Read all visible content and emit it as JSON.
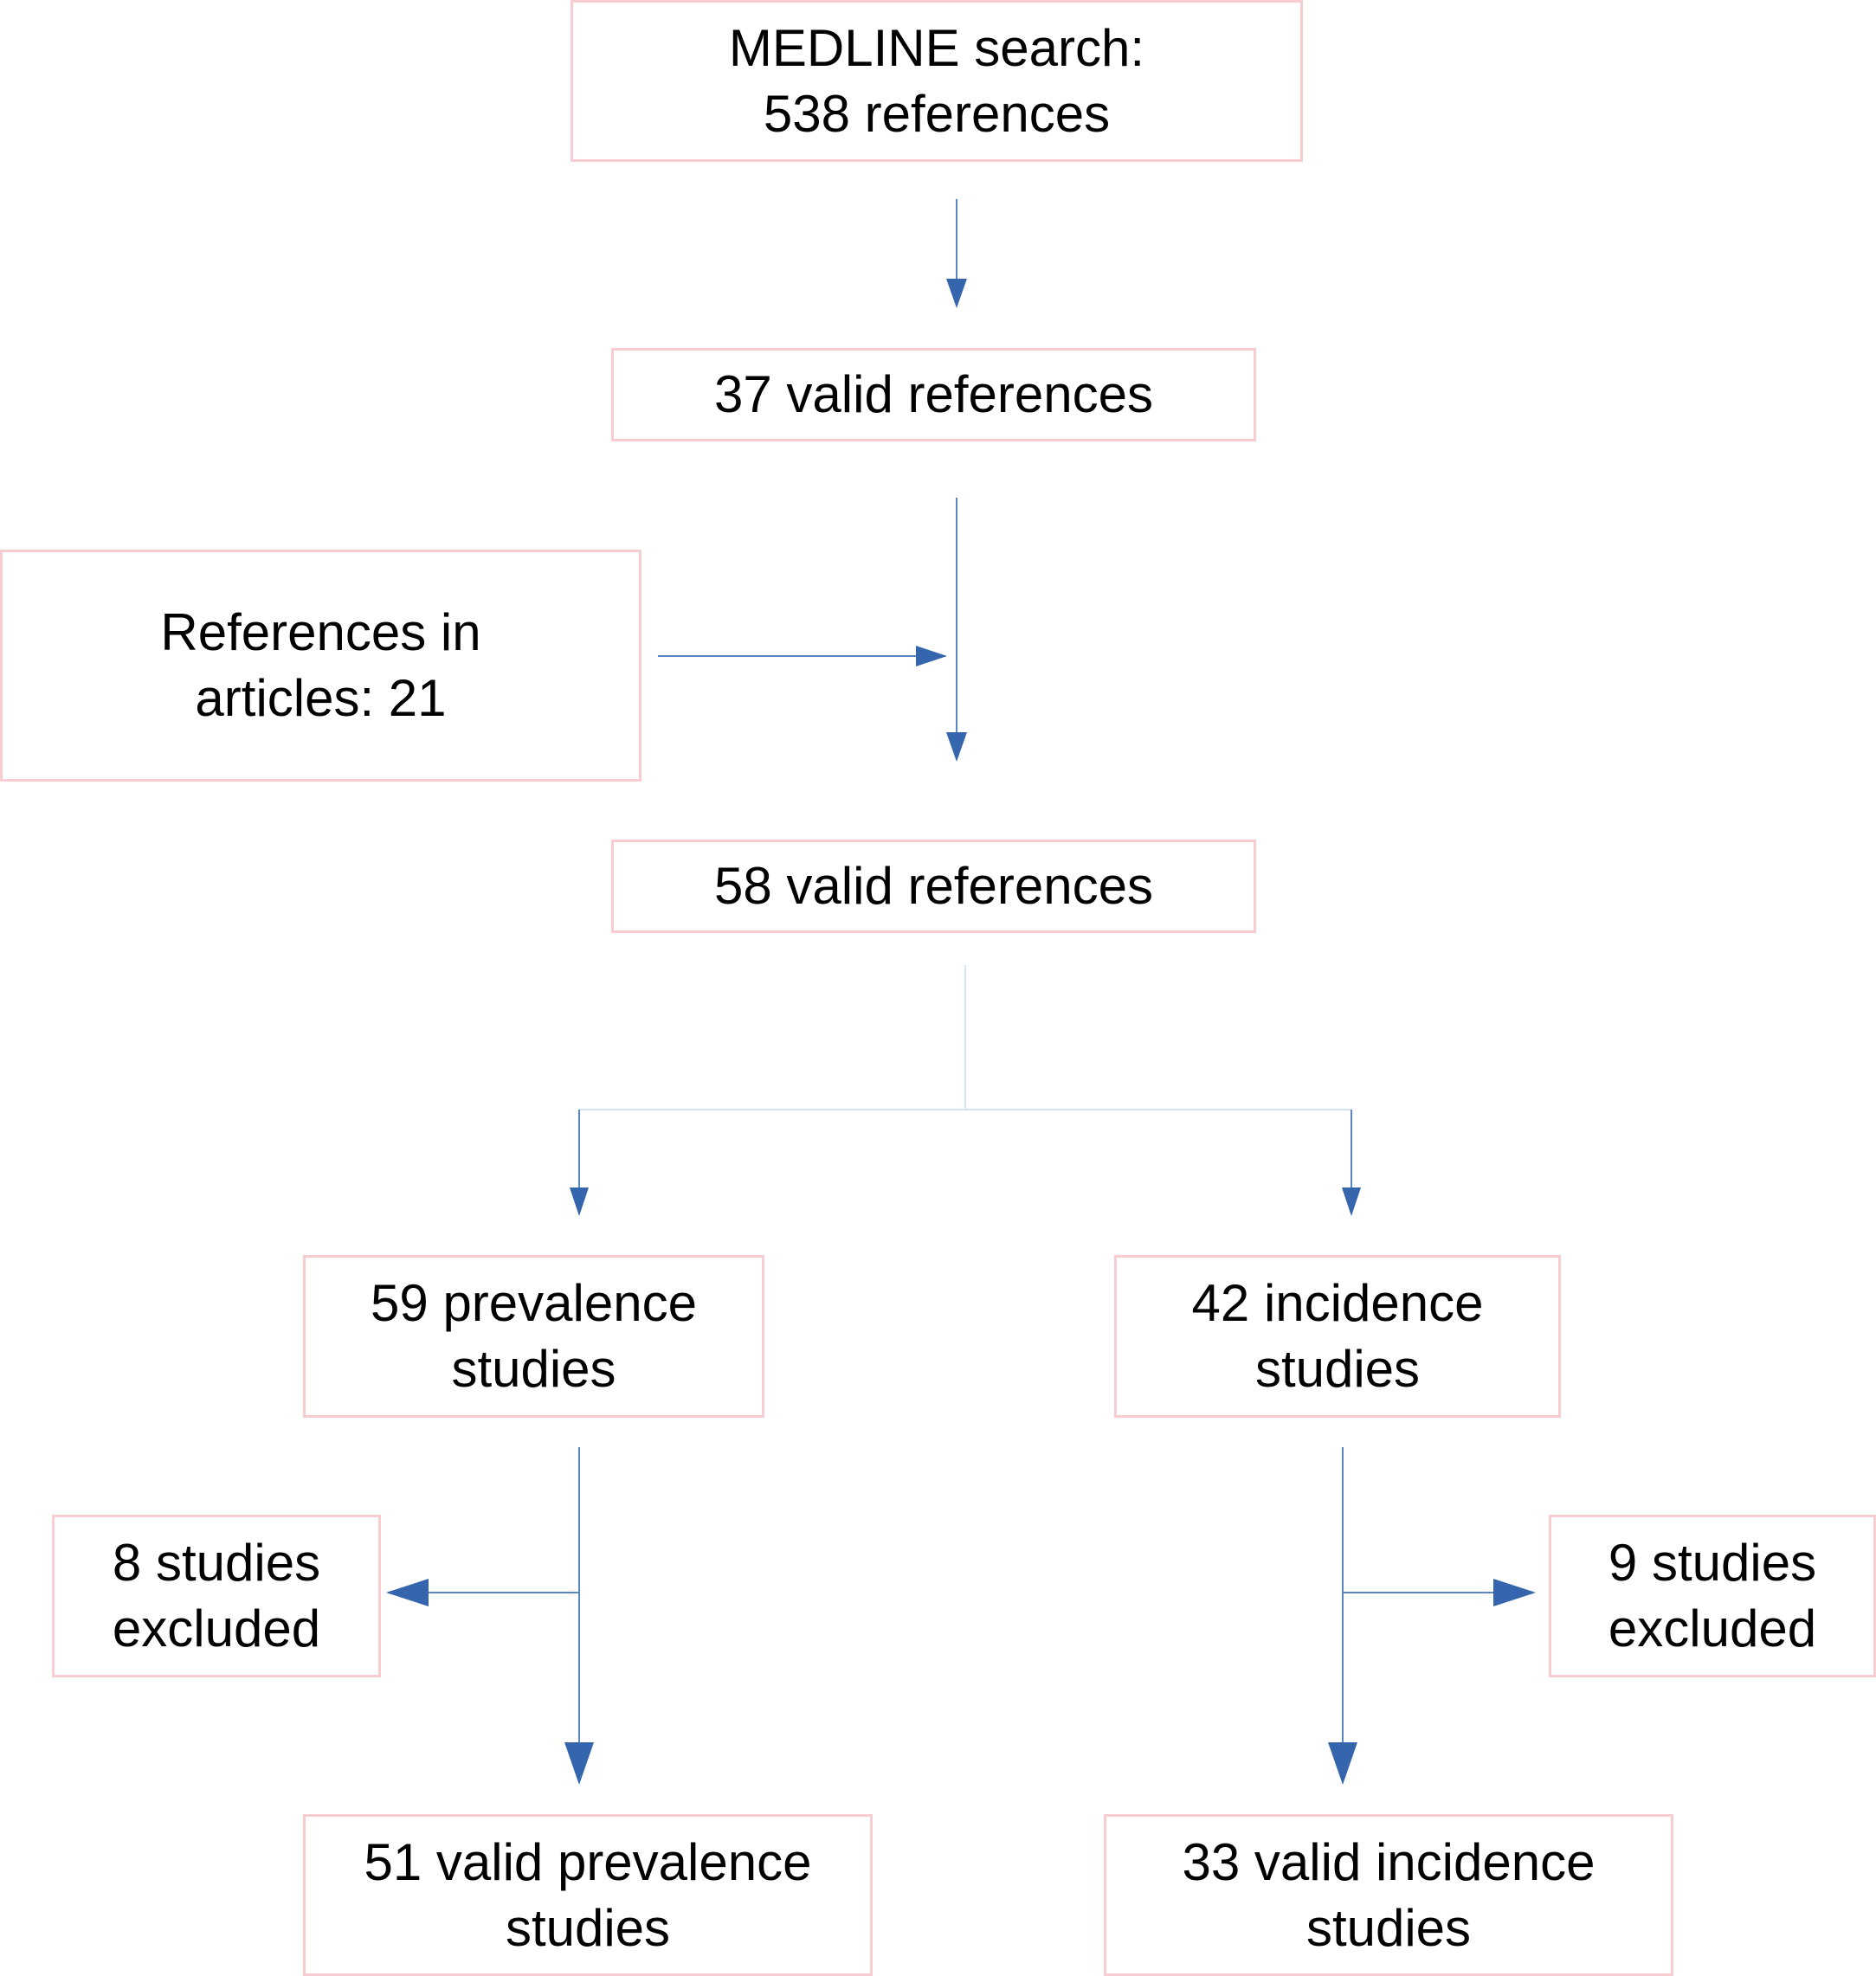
{
  "colors": {
    "box_border": "#f8cdd2",
    "connector_line": "#5a86c4",
    "arrowhead": "#3565ad",
    "split_line": "#d6e3f3"
  },
  "boxes": {
    "medline": {
      "line1": "MEDLINE search:",
      "line2": "538 references"
    },
    "valid37": {
      "line1": "37 valid references"
    },
    "ref_articles": {
      "line1": "References in",
      "line2": "articles: 21"
    },
    "valid58": {
      "line1": "58 valid references"
    },
    "prevalence59": {
      "line1": "59 prevalence",
      "line2": "studies"
    },
    "incidence42": {
      "line1": "42 incidence",
      "line2": "studies"
    },
    "excluded8": {
      "line1": "8 studies",
      "line2": "excluded"
    },
    "excluded9": {
      "line1": "9 studies",
      "line2": "excluded"
    },
    "valid_prev51": {
      "line1": "51 valid prevalence",
      "line2": "studies"
    },
    "valid_inc33": {
      "line1": "33 valid incidence",
      "line2": "studies"
    }
  }
}
